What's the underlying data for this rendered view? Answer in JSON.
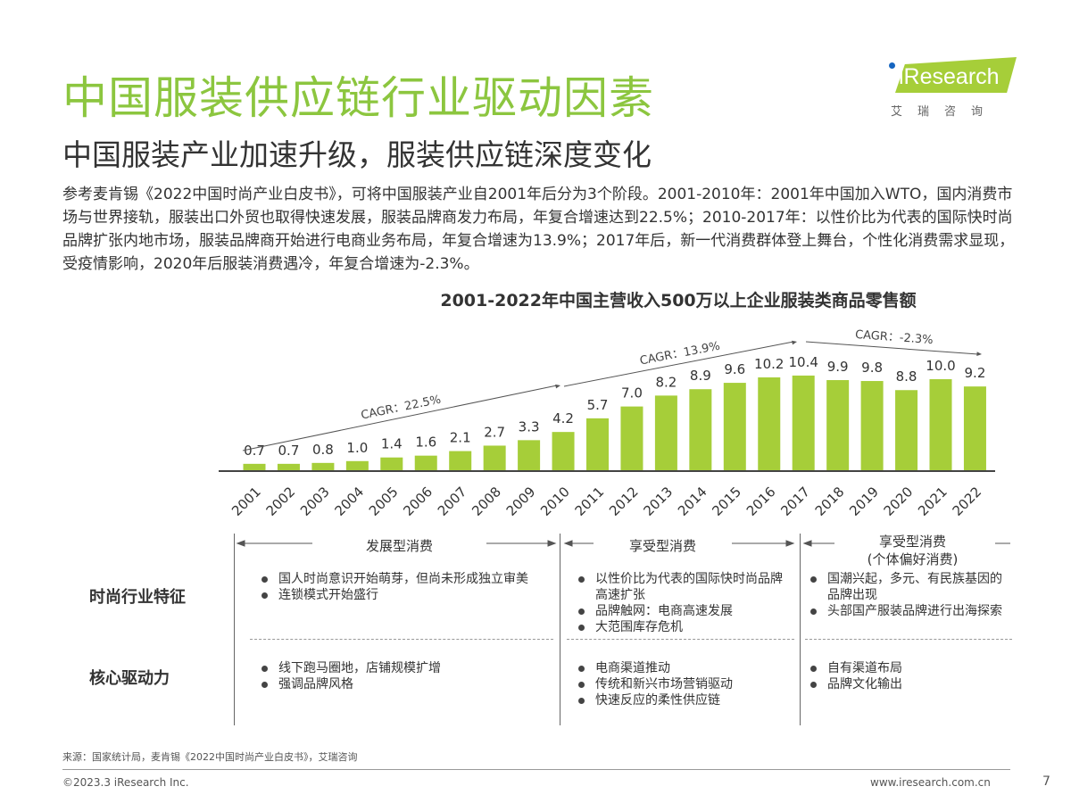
{
  "title": "中国服装供应链行业驱动因素",
  "subtitle": "中国服装产业加速升级，服装供应链深度变化",
  "intro": "参考麦肯锡《2022中国时尚产业白皮书》，可将中国服装产业自2001年后分为3个阶段。2001-2010年：2001年中国加入WTO，国内消费市场与世界接轨，服装出口外贸也取得快速发展，服装品牌商发力布局，年复合增速达到22.5%；2010-2017年：以性价比为代表的国际快时尚品牌扩张内地市场，服装品牌商开始进行电商业务布局，年复合增速为13.9%；2017年后，新一代消费群体登上舞台，个性化消费需求显现，受疫情影响，2020年后服装消费遇冷，年复合增速为-2.3%。",
  "logo": {
    "text": "iResearch",
    "sub": "艾瑞咨询",
    "color": "#a6ce39"
  },
  "chart_data": {
    "type": "bar",
    "title": "2001-2022年中国主营收入500万以上企业服装类商品零售额",
    "categories": [
      "2001",
      "2002",
      "2003",
      "2004",
      "2005",
      "2006",
      "2007",
      "2008",
      "2009",
      "2010",
      "2011",
      "2012",
      "2013",
      "2014",
      "2015",
      "2016",
      "2017",
      "2018",
      "2019",
      "2020",
      "2021",
      "2022"
    ],
    "values": [
      0.7,
      0.7,
      0.8,
      1.0,
      1.4,
      1.6,
      2.1,
      2.7,
      3.3,
      4.2,
      5.7,
      7.0,
      8.2,
      8.9,
      9.6,
      10.2,
      10.4,
      9.9,
      9.8,
      8.8,
      10.0,
      9.2
    ],
    "value_labels": [
      "0.7",
      "0.7",
      "0.8",
      "1.0",
      "1.4",
      "1.6",
      "2.1",
      "2.7",
      "3.3",
      "4.2",
      "5.7",
      "7.0",
      "8.2",
      "8.9",
      "9.6",
      "10.2",
      "10.4",
      "9.9",
      "9.8",
      "8.8",
      "10.0",
      "9.2"
    ],
    "bar_color": "#a6ce39",
    "annotations": [
      {
        "text": "CAGR：22.5%",
        "from": "2001",
        "to": "2010"
      },
      {
        "text": "CAGR：13.9%",
        "from": "2010",
        "to": "2017"
      },
      {
        "text": "CAGR：-2.3%",
        "from": "2017",
        "to": "2022"
      }
    ],
    "grid": false
  },
  "table": {
    "columns": [
      "发展型消费",
      "享受型消费",
      "享受型消费\n(个体偏好消费)"
    ],
    "rows": [
      {
        "label": "时尚行业特征",
        "cells": [
          [
            "国人时尚意识开始萌芽，但尚未形成独立审美",
            "连锁模式开始盛行"
          ],
          [
            "以性价比为代表的国际快时尚品牌高速扩张",
            "品牌触网：电商高速发展",
            "大范围库存危机"
          ],
          [
            "国潮兴起，多元、有民族基因的品牌出现",
            "头部国产服装品牌进行出海探索"
          ]
        ]
      },
      {
        "label": "核心驱动力",
        "cells": [
          [
            "线下跑马圈地，店铺规模扩增",
            "强调品牌风格"
          ],
          [
            "电商渠道推动",
            "传统和新兴市场营销驱动",
            "快速反应的柔性供应链"
          ],
          [
            "自有渠道布局",
            "品牌文化输出"
          ]
        ]
      }
    ]
  },
  "footer": {
    "source": "来源：国家统计局，麦肯锡《2022中国时尚产业白皮书》，艾瑞咨询",
    "copyright": "©2023.3 iResearch Inc.",
    "website": "www.iresearch.com.cn",
    "page": "7"
  }
}
